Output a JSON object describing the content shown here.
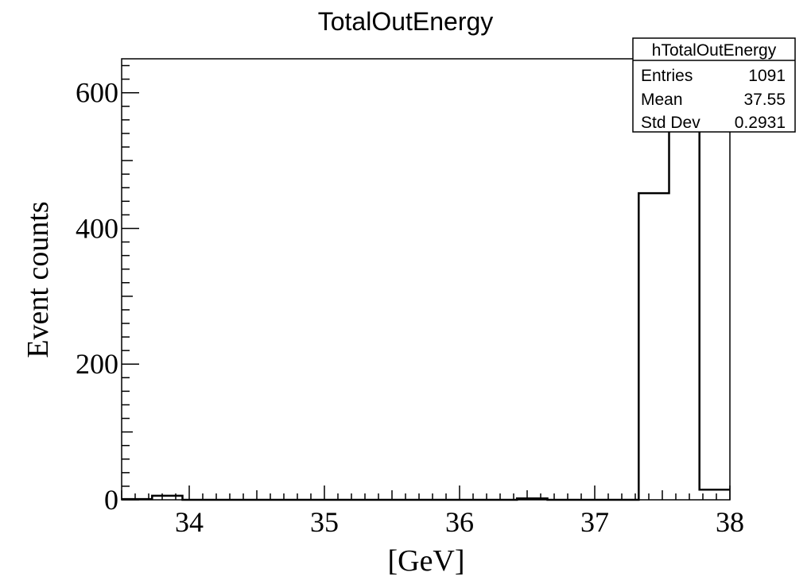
{
  "chart_data": {
    "type": "bar",
    "title": "TotalOutEnergy",
    "xlabel": "[GeV]",
    "ylabel": "Event counts",
    "xlim": [
      33.5,
      38
    ],
    "ylim": [
      0,
      650
    ],
    "x_ticks": [
      34,
      35,
      36,
      37,
      38
    ],
    "y_ticks": [
      0,
      200,
      400,
      600
    ],
    "bins": [
      {
        "low": 33.5,
        "high": 33.725,
        "value": 1
      },
      {
        "low": 33.725,
        "high": 33.95,
        "value": 6
      },
      {
        "low": 33.95,
        "high": 36.425,
        "value": 0
      },
      {
        "low": 36.425,
        "high": 36.65,
        "value": 2
      },
      {
        "low": 36.65,
        "high": 37.325,
        "value": 0
      },
      {
        "low": 37.325,
        "high": 37.55,
        "value": 452
      },
      {
        "low": 37.55,
        "high": 37.775,
        "value": 615
      },
      {
        "low": 37.775,
        "high": 38.0,
        "value": 15
      }
    ],
    "stats": {
      "name": "hTotalOutEnergy",
      "rows": [
        {
          "label": "Entries",
          "value": "1091"
        },
        {
          "label": "Mean",
          "value": "37.55"
        },
        {
          "label": "Std Dev",
          "value": "0.2931"
        }
      ]
    },
    "line_color": "#000000",
    "grid": false
  }
}
